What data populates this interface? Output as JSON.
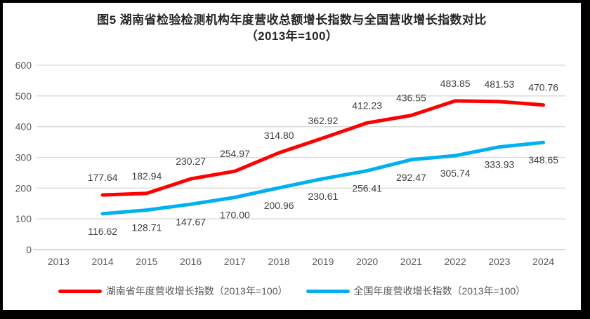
{
  "title": {
    "line1": "图5 湖南省检验检测机构年度营收总额增长指数与全国营收增长指数对比",
    "line2": "（2013年=100）"
  },
  "chart_data": {
    "type": "line",
    "categories": [
      "2013",
      "2014",
      "2015",
      "2016",
      "2017",
      "2018",
      "2019",
      "2020",
      "2021",
      "2022",
      "2023",
      "2024"
    ],
    "series": [
      {
        "name": "湖南省年度营收增长指数（2013年=100）",
        "color": "#FF0000",
        "label_position": "above",
        "values": [
          null,
          177.64,
          182.94,
          230.27,
          254.97,
          314.8,
          362.92,
          412.23,
          436.55,
          483.85,
          481.53,
          470.76
        ]
      },
      {
        "name": "全国年度营收增长指数（2013年=100）",
        "color": "#00B0F0",
        "label_position": "below",
        "values": [
          null,
          116.62,
          128.71,
          147.67,
          170.0,
          200.96,
          230.61,
          256.41,
          292.47,
          305.74,
          333.93,
          348.65
        ]
      }
    ],
    "ylim": [
      0,
      600
    ],
    "yticks": [
      0,
      100,
      200,
      300,
      400,
      500,
      600
    ],
    "grid": true,
    "legend_position": "bottom",
    "value_decimals": 2
  },
  "colors": {
    "background": "#FFFFFF",
    "frame_border": "#000000",
    "title_text": "#262626",
    "axis_text": "#595959",
    "data_label_text": "#404040",
    "gridline": "#D9D9D9",
    "axis_line": "#BFBFBF"
  }
}
